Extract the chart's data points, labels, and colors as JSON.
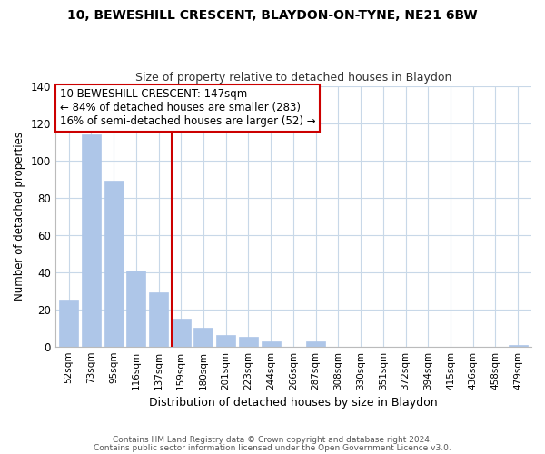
{
  "title": "10, BEWESHILL CRESCENT, BLAYDON-ON-TYNE, NE21 6BW",
  "subtitle": "Size of property relative to detached houses in Blaydon",
  "xlabel": "Distribution of detached houses by size in Blaydon",
  "ylabel": "Number of detached properties",
  "bar_labels": [
    "52sqm",
    "73sqm",
    "95sqm",
    "116sqm",
    "137sqm",
    "159sqm",
    "180sqm",
    "201sqm",
    "223sqm",
    "244sqm",
    "266sqm",
    "287sqm",
    "308sqm",
    "330sqm",
    "351sqm",
    "372sqm",
    "394sqm",
    "415sqm",
    "436sqm",
    "458sqm",
    "479sqm"
  ],
  "bar_values": [
    25,
    114,
    89,
    41,
    29,
    15,
    10,
    6,
    5,
    3,
    0,
    3,
    0,
    0,
    0,
    0,
    0,
    0,
    0,
    0,
    1
  ],
  "bar_color": "#aec6e8",
  "bar_edge_color": "#aec6e8",
  "vline_x": 4.6,
  "vline_color": "#cc0000",
  "annotation_title": "10 BEWESHILL CRESCENT: 147sqm",
  "annotation_line1": "← 84% of detached houses are smaller (283)",
  "annotation_line2": "16% of semi-detached houses are larger (52) →",
  "annotation_box_color": "#ffffff",
  "annotation_box_edge": "#cc0000",
  "ylim": [
    0,
    140
  ],
  "yticks": [
    0,
    20,
    40,
    60,
    80,
    100,
    120,
    140
  ],
  "footer1": "Contains HM Land Registry data © Crown copyright and database right 2024.",
  "footer2": "Contains public sector information licensed under the Open Government Licence v3.0.",
  "bg_color": "#ffffff",
  "grid_color": "#c8d8e8"
}
